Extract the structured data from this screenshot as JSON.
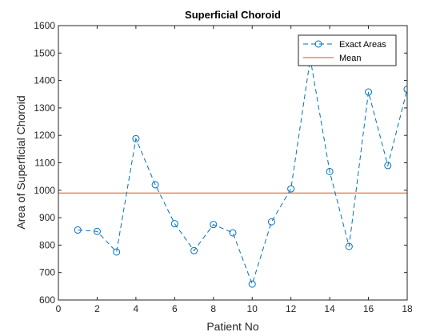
{
  "chart_data": {
    "type": "line",
    "title": "Superficial Choroid",
    "xlabel": "Patient No",
    "ylabel": "Area of Superficial Choroid",
    "xlim": [
      0,
      18
    ],
    "ylim": [
      600,
      1600
    ],
    "xticks": [
      0,
      2,
      4,
      6,
      8,
      10,
      12,
      14,
      16,
      18
    ],
    "yticks": [
      600,
      700,
      800,
      900,
      1000,
      1100,
      1200,
      1300,
      1400,
      1500,
      1600
    ],
    "grid": false,
    "legend_position": "top-right",
    "series": [
      {
        "name": "Exact Areas",
        "style": "dashed line with circle markers",
        "color": "#0072BD",
        "x": [
          1,
          2,
          3,
          4,
          5,
          6,
          7,
          8,
          9,
          10,
          11,
          12,
          13,
          14,
          15,
          16,
          17,
          18
        ],
        "values": [
          855,
          850,
          775,
          1188,
          1020,
          878,
          780,
          875,
          845,
          658,
          885,
          1005,
          1480,
          1068,
          795,
          1358,
          1090,
          1368
        ]
      },
      {
        "name": "Mean",
        "style": "solid line",
        "color": "#D95319",
        "x": [
          0,
          18
        ],
        "values": [
          990,
          990
        ]
      }
    ]
  }
}
